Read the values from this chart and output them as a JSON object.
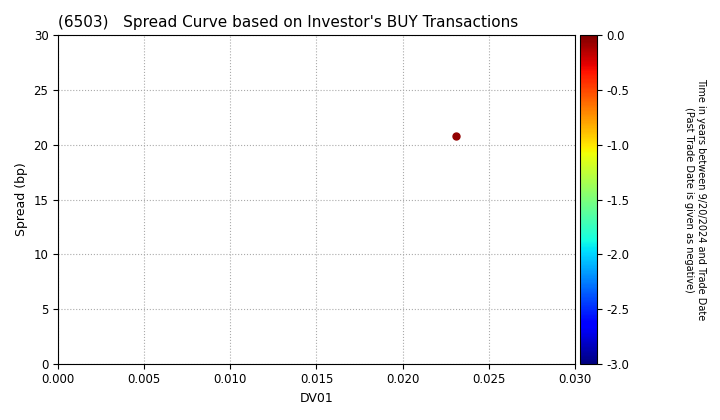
{
  "title": "(6503)   Spread Curve based on Investor's BUY Transactions",
  "xlabel": "DV01",
  "ylabel": "Spread (bp)",
  "xlim": [
    0.0,
    0.03
  ],
  "ylim": [
    0,
    30
  ],
  "xticks": [
    0.0,
    0.005,
    0.01,
    0.015,
    0.02,
    0.025,
    0.03
  ],
  "yticks": [
    0,
    5,
    10,
    15,
    20,
    25,
    30
  ],
  "xtick_labels": [
    "0.000",
    "0.005",
    "0.010",
    "0.015",
    "0.020",
    "0.025",
    "0.030"
  ],
  "ytick_labels": [
    "0",
    "5",
    "10",
    "15",
    "20",
    "25",
    "30"
  ],
  "scatter_x": [
    0.0231
  ],
  "scatter_y": [
    20.8
  ],
  "scatter_color_value": [
    -0.05
  ],
  "scatter_size": 25,
  "colorbar_label_line1": "Time in years between 9/20/2024 and Trade Date",
  "colorbar_label_line2": "(Past Trade Date is given as negative)",
  "cmap": "jet",
  "clim": [
    -3.0,
    0.0
  ],
  "colorbar_ticks": [
    0.0,
    -0.5,
    -1.0,
    -1.5,
    -2.0,
    -2.5,
    -3.0
  ],
  "grid_color": "#aaaaaa",
  "grid_style": "dotted",
  "background_color": "#ffffff",
  "title_fontsize": 11,
  "axis_fontsize": 9,
  "tick_fontsize": 8.5,
  "colorbar_label_fontsize": 7
}
